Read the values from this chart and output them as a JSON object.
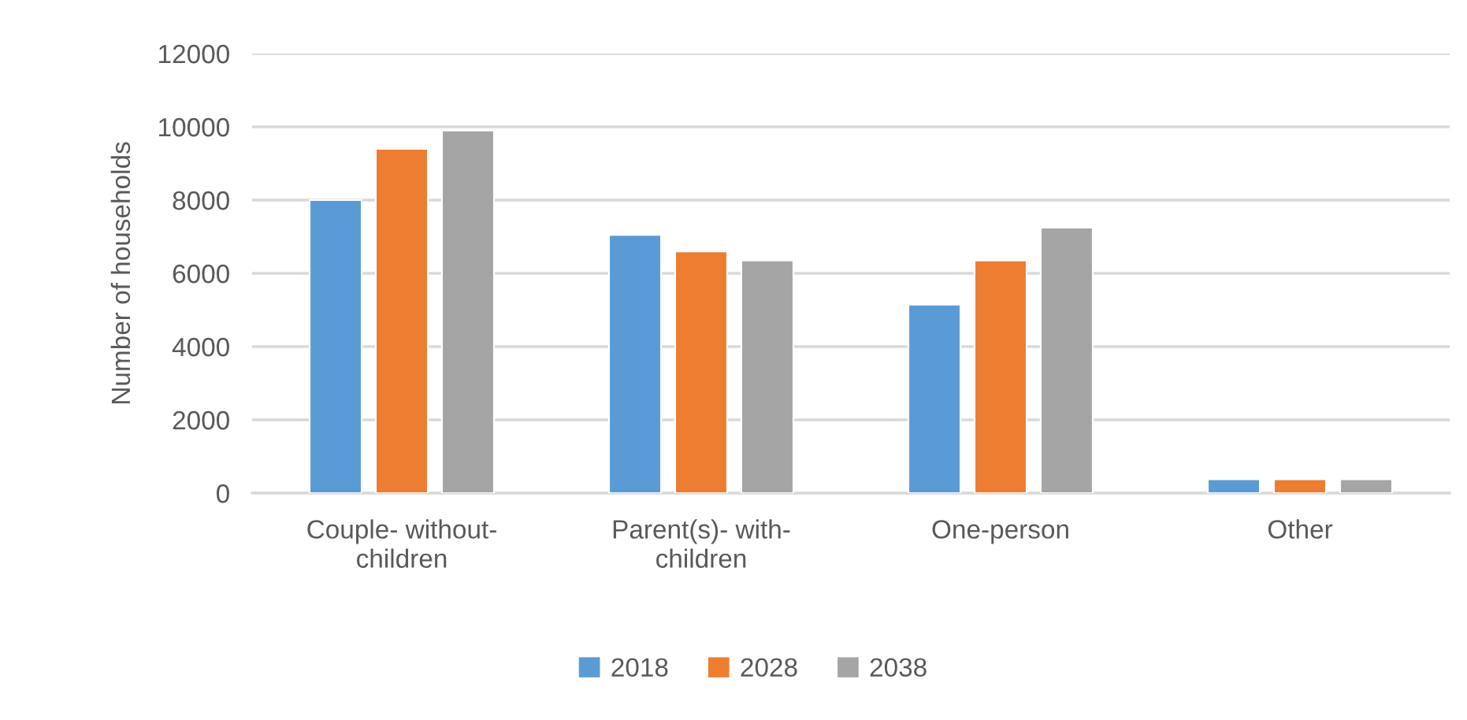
{
  "chart_data": {
    "type": "bar",
    "ylabel": "Number of households",
    "categories": [
      "Couple- without- children",
      "Parent(s)- with- children",
      "One-person",
      "Other"
    ],
    "series": [
      {
        "name": "2018",
        "color": "#5b9bd5",
        "values": [
          8000,
          7050,
          5150,
          380
        ]
      },
      {
        "name": "2028",
        "color": "#ed7d31",
        "values": [
          9400,
          6600,
          6350,
          380
        ]
      },
      {
        "name": "2038",
        "color": "#a5a5a5",
        "values": [
          9900,
          6350,
          7250,
          380
        ]
      }
    ],
    "ylim": [
      0,
      12000
    ],
    "yticks": [
      0,
      2000,
      4000,
      6000,
      8000,
      10000,
      12000
    ],
    "grid": "y",
    "legend": "bottom"
  }
}
